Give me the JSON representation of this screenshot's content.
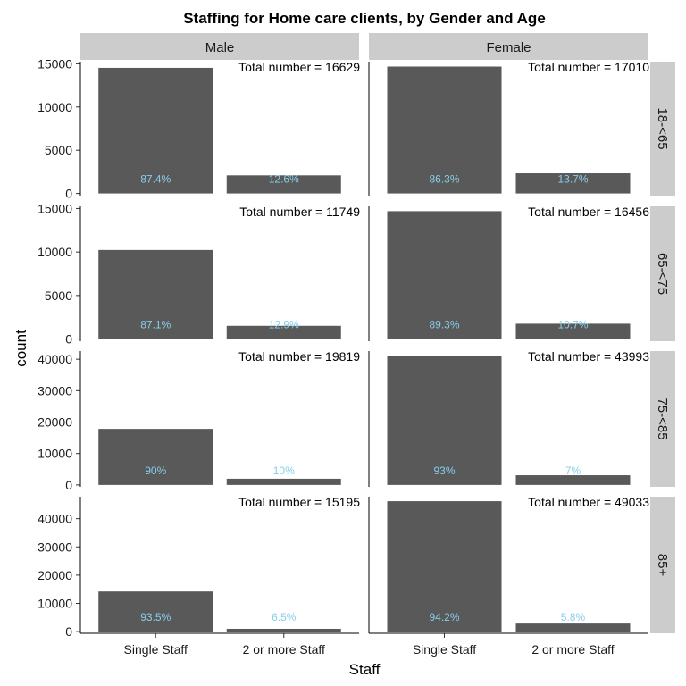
{
  "chart_data": {
    "type": "bar",
    "title": "Staffing for Home care clients, by Gender and Age",
    "xlabel": "Staff",
    "ylabel": "count",
    "categories": [
      "Single Staff",
      "2 or more Staff"
    ],
    "columns": [
      "Male",
      "Female"
    ],
    "rows": [
      "18-<65",
      "65-<75",
      "75-<85",
      "85+"
    ],
    "bar_color": "#595959",
    "label_color": "#87ceeb",
    "strip_color": "#cccccc",
    "total_prefix": "Total number = ",
    "panels": [
      {
        "row": 0,
        "col": 0,
        "total": "16629",
        "values": [
          14534,
          2095
        ],
        "labels": [
          "87.4%",
          "12.6%"
        ]
      },
      {
        "row": 0,
        "col": 1,
        "total": "17010",
        "values": [
          14680,
          2330
        ],
        "labels": [
          "86.3%",
          "13.7%"
        ]
      },
      {
        "row": 1,
        "col": 0,
        "total": "11749",
        "values": [
          10233,
          1516
        ],
        "labels": [
          "87.1%",
          "12.9%"
        ]
      },
      {
        "row": 1,
        "col": 1,
        "total": "16456",
        "values": [
          14695,
          1761
        ],
        "labels": [
          "89.3%",
          "10.7%"
        ]
      },
      {
        "row": 2,
        "col": 0,
        "total": "19819",
        "values": [
          17837,
          1982
        ],
        "labels": [
          "90%",
          "10%"
        ]
      },
      {
        "row": 2,
        "col": 1,
        "total": "43993",
        "values": [
          40913,
          3080
        ],
        "labels": [
          "93%",
          "7%"
        ]
      },
      {
        "row": 3,
        "col": 0,
        "total": "15195",
        "values": [
          14207,
          988
        ],
        "labels": [
          "93.5%",
          "6.5%"
        ]
      },
      {
        "row": 3,
        "col": 1,
        "total": "49033",
        "values": [
          46189,
          2844
        ],
        "labels": [
          "94.2%",
          "5.8%"
        ]
      }
    ],
    "row_axes": [
      {
        "ylim": [
          -250,
          15250
        ],
        "ticks": [
          0,
          5000,
          10000,
          15000
        ],
        "tick_labels": [
          "0",
          "5000",
          "10000",
          "15000"
        ]
      },
      {
        "ylim": [
          -250,
          15250
        ],
        "ticks": [
          0,
          5000,
          10000,
          15000
        ],
        "tick_labels": [
          "0",
          "5000",
          "10000",
          "15000"
        ]
      },
      {
        "ylim": [
          -600,
          42600
        ],
        "ticks": [
          0,
          10000,
          20000,
          30000,
          40000
        ],
        "tick_labels": [
          "0",
          "10000",
          "20000",
          "30000",
          "40000"
        ]
      },
      {
        "ylim": [
          -600,
          47800
        ],
        "ticks": [
          0,
          10000,
          20000,
          30000,
          40000
        ],
        "tick_labels": [
          "0",
          "10000",
          "20000",
          "30000",
          "40000"
        ]
      }
    ]
  }
}
